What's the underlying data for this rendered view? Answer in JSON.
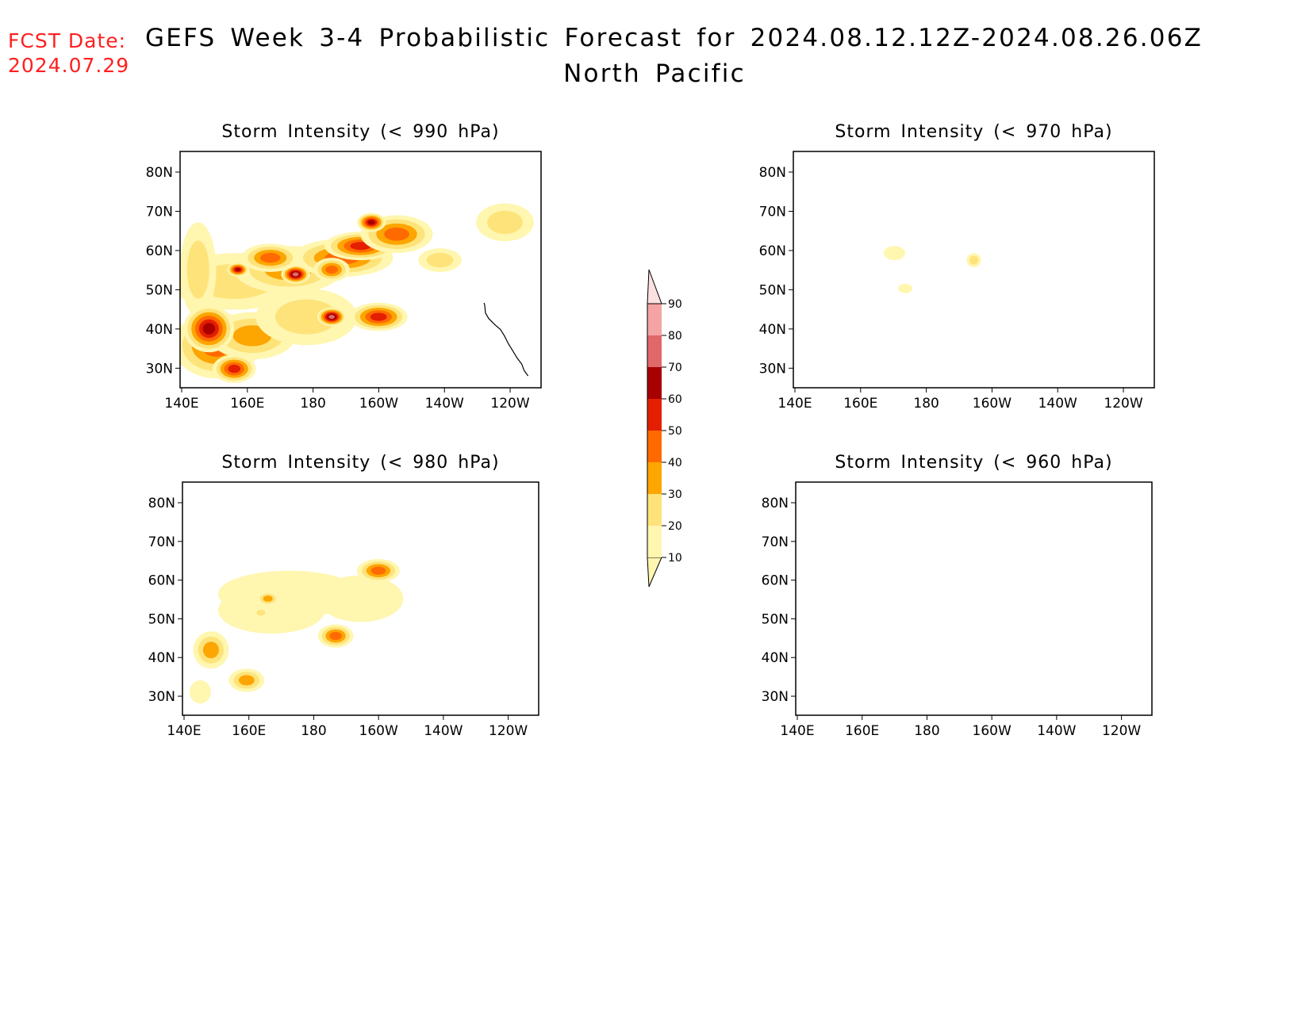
{
  "header": {
    "fcst_label": "FCST Date:",
    "fcst_date": "2024.07.29",
    "title": "GEFS Week 3-4 Probabilistic Forecast for 2024.08.12.12Z-2024.08.26.06Z",
    "subtitle": "North Pacific"
  },
  "axes": {
    "x_ticks": [
      "140E",
      "160E",
      "180",
      "160W",
      "140W",
      "120W"
    ],
    "y_ticks": [
      "80N",
      "70N",
      "60N",
      "50N",
      "40N",
      "30N"
    ]
  },
  "panels": [
    {
      "title": "Storm Intensity (< 990 hPa)",
      "activity": "high"
    },
    {
      "title": "Storm Intensity (< 970 hPa)",
      "activity": "low"
    },
    {
      "title": "Storm Intensity (< 980 hPa)",
      "activity": "medium"
    },
    {
      "title": "Storm Intensity (< 960 hPa)",
      "activity": "none"
    }
  ],
  "colorbar": {
    "levels": [
      "10",
      "20",
      "30",
      "40",
      "50",
      "60",
      "70",
      "80",
      "90"
    ],
    "colors": [
      "#fff6b0",
      "#fde37a",
      "#fda500",
      "#ff6a00",
      "#e41e00",
      "#a80000",
      "#e06868",
      "#f4a4a4",
      "#fde0e0"
    ]
  }
}
